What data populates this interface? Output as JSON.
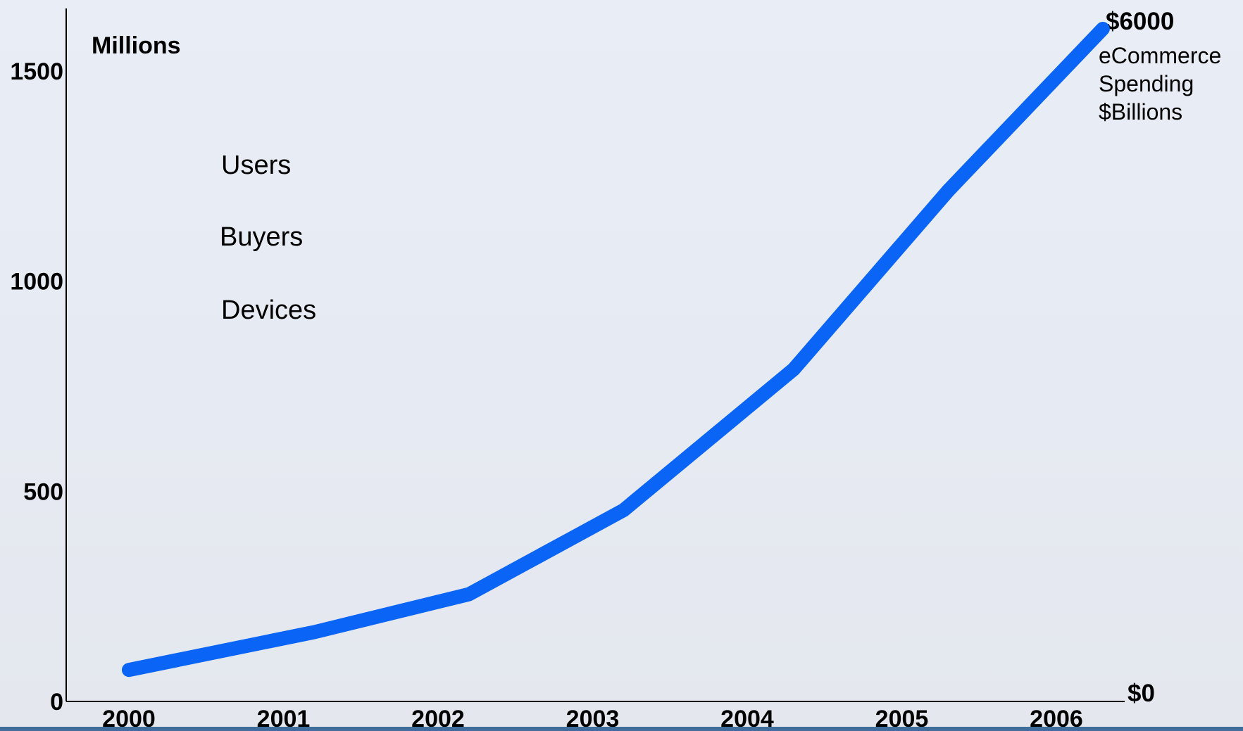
{
  "chart_data": {
    "type": "line",
    "title": "",
    "x": [
      "2000",
      "2001",
      "2002",
      "2003",
      "2004",
      "2005",
      "2006"
    ],
    "y_left_ticks": [
      "0",
      "500",
      "1000",
      "1500"
    ],
    "y_left_unit": "Millions",
    "ylim_left": [
      0,
      1600
    ],
    "y_right_top_label": "$6000",
    "y_right_bottom_label": "$0",
    "y_right_title_lines": [
      "eCommerce",
      "Spending",
      "$Billions"
    ],
    "ylim_right": [
      0,
      6000
    ],
    "legend_labels": [
      "Users",
      "Buyers",
      "Devices"
    ],
    "series": [
      {
        "values": [
          75,
          165,
          255,
          455,
          790,
          1215,
          1600
        ],
        "color": "#0a64f5",
        "x_positions": [
          0,
          1.2,
          2.2,
          3.2,
          4.3,
          5.3,
          6.3
        ]
      }
    ],
    "grid": false
  }
}
